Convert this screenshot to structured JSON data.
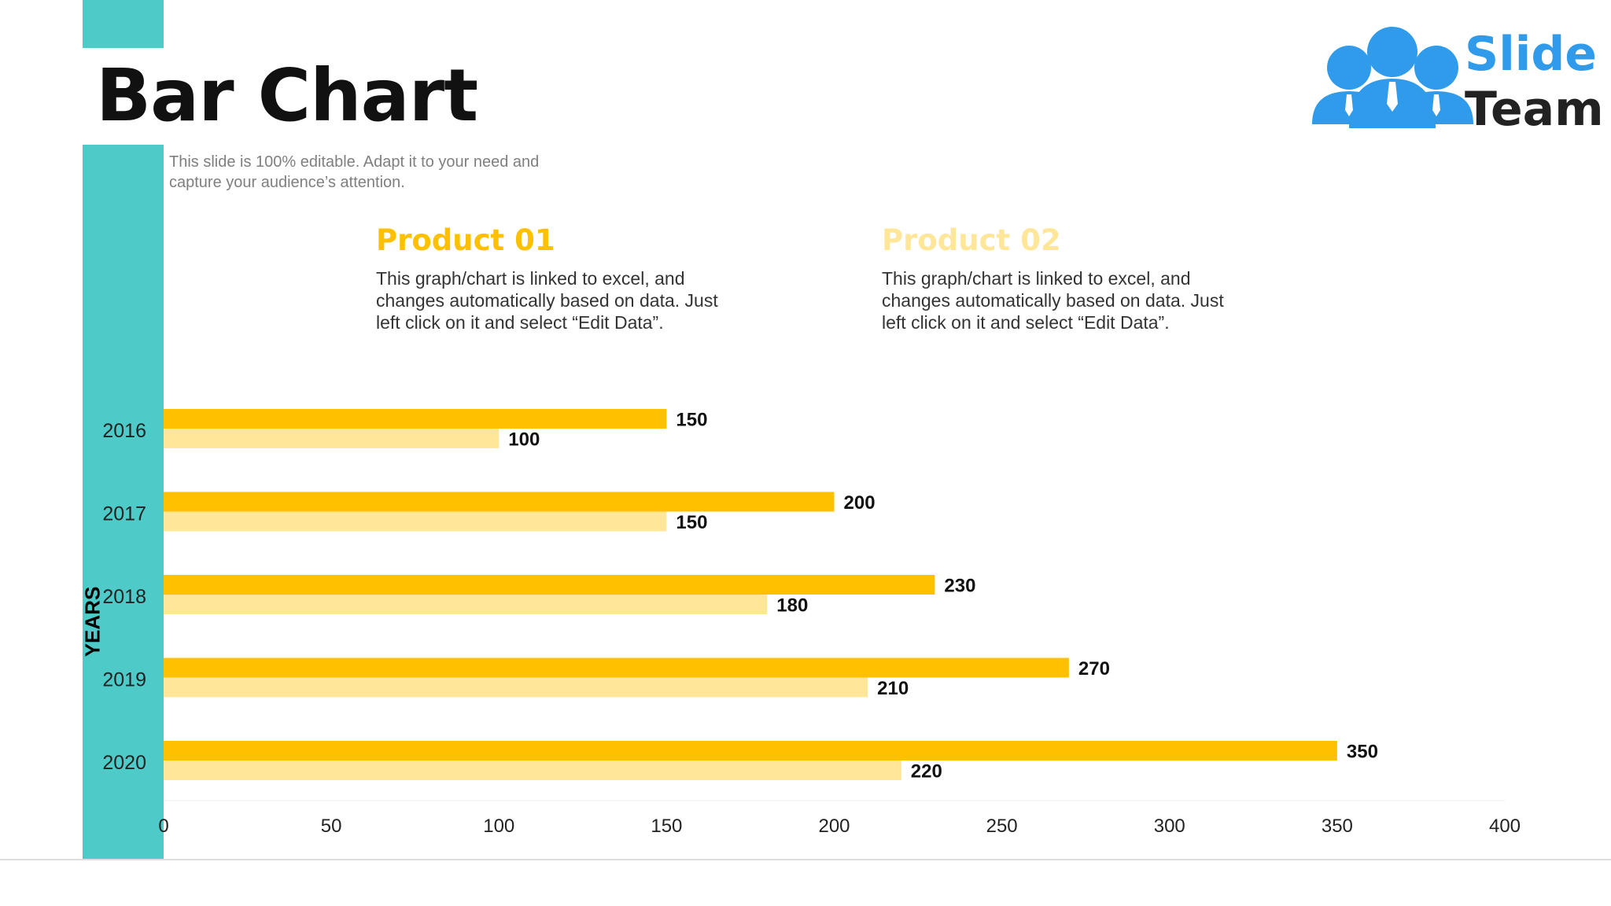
{
  "slide": {
    "title": "Bar Chart",
    "subtitle": "This slide is 100% editable. Adapt it to your need and capture your audience’s attention.",
    "product_01": {
      "heading": "Product 01",
      "description": "This graph/chart is linked to excel, and changes automatically based on data. Just left click on it and select “Edit Data”."
    },
    "product_02": {
      "heading": "Product 02",
      "description": "This graph/chart is linked to excel, and changes automatically based on data. Just left click on it and select “Edit Data”."
    },
    "logo": {
      "line1": "Slide",
      "line2": "Team",
      "icon": "people-group-icon"
    }
  },
  "colors": {
    "teal": "#4ECAC8",
    "product_01": "#FFC000",
    "product_02": "#FFE699",
    "logo_blue": "#2F9BEA",
    "logo_dark": "#222222"
  },
  "chart_data": {
    "type": "bar",
    "orientation": "horizontal",
    "categories": [
      "2016",
      "2017",
      "2018",
      "2019",
      "2020"
    ],
    "series": [
      {
        "name": "Product 01",
        "values": [
          150,
          200,
          230,
          270,
          350
        ]
      },
      {
        "name": "Product 02",
        "values": [
          100,
          150,
          180,
          210,
          220
        ]
      }
    ],
    "ylabel": "YEARS",
    "xlabel": "",
    "xlim": [
      0,
      400
    ],
    "x_ticks": [
      0,
      50,
      100,
      150,
      200,
      250,
      300,
      350,
      400
    ],
    "data_labels": true,
    "grid": false
  }
}
